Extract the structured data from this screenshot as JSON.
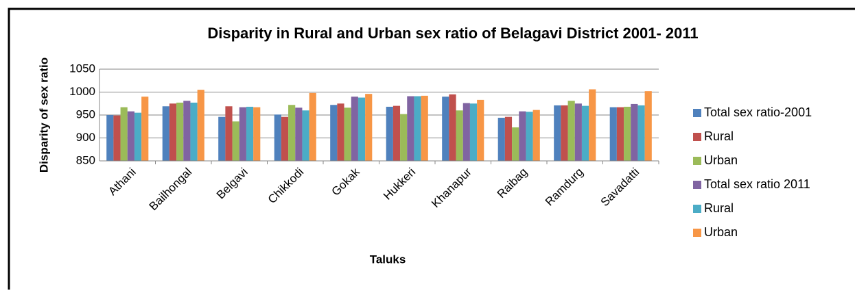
{
  "chart_data": {
    "type": "bar",
    "title": "Disparity in Rural and Urban sex ratio of Belagavi District 2001- 2011",
    "x_label": "Taluks",
    "y_label": "Disparity of sex ratio",
    "categories": [
      "Athani",
      "Bailhongal",
      "Belgavi",
      "Chikkodi",
      "Gokak",
      "Hukkeri",
      "Khanapur",
      "Raibag",
      "Ramdurg",
      "Savadatti"
    ],
    "series": [
      {
        "name": "Total sex ratio-2001",
        "color": "#4f81bd",
        "values": [
          950,
          969,
          946,
          951,
          972,
          968,
          990,
          944,
          971,
          967
        ]
      },
      {
        "name": "Rural",
        "color": "#c0504d",
        "values": [
          949,
          975,
          969,
          946,
          975,
          970,
          995,
          946,
          971,
          967
        ]
      },
      {
        "name": "Urban",
        "color": "#9bbb59",
        "values": [
          967,
          977,
          936,
          972,
          966,
          952,
          960,
          923,
          981,
          968
        ]
      },
      {
        "name": "Total sex ratio 2011",
        "color": "#8064a2",
        "values": [
          958,
          981,
          967,
          966,
          990,
          991,
          976,
          958,
          975,
          974
        ]
      },
      {
        "name": "Rural",
        "color": "#4bacc6",
        "values": [
          955,
          977,
          968,
          960,
          988,
          991,
          975,
          957,
          970,
          971
        ]
      },
      {
        "name": "Urban",
        "color": "#f79646",
        "values": [
          990,
          1005,
          967,
          998,
          996,
          992,
          983,
          961,
          1006,
          1002
        ]
      }
    ],
    "ylim": [
      850,
      1050
    ],
    "yticks": [
      850,
      900,
      950,
      1000,
      1050
    ],
    "grid": true,
    "legend": "right"
  }
}
